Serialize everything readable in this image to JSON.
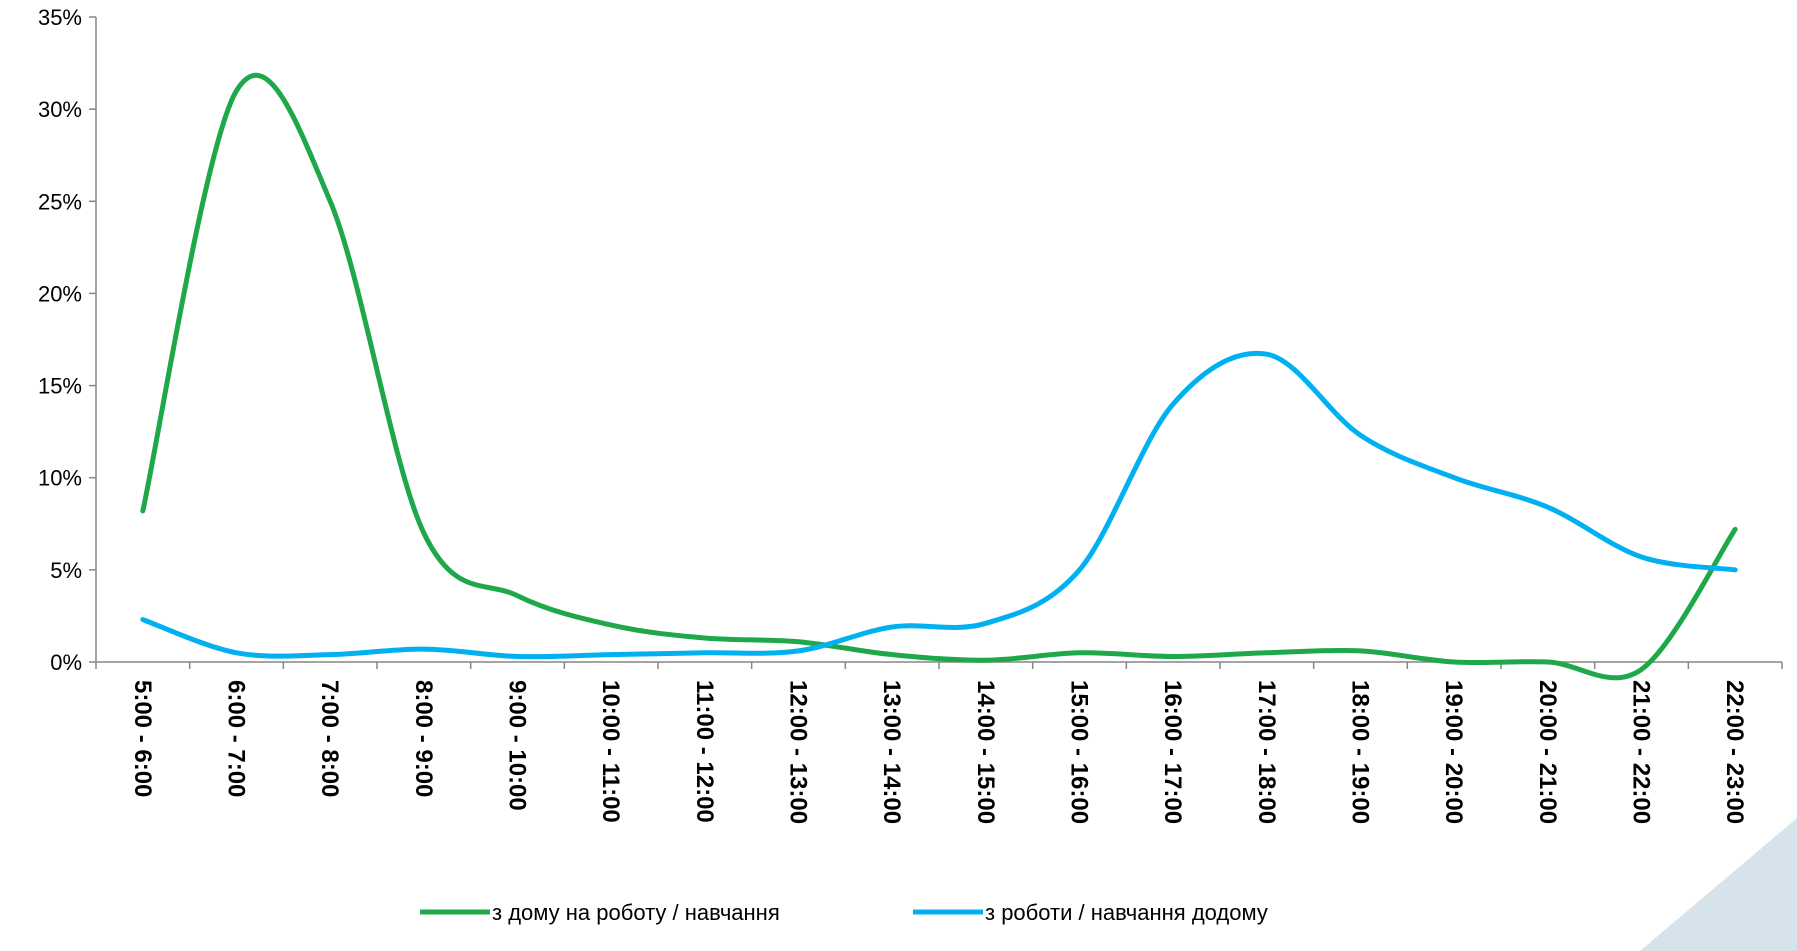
{
  "chart_data": {
    "type": "line",
    "smooth": true,
    "categories": [
      "5:00 - 6:00",
      "6:00 - 7:00",
      "7:00 - 8:00",
      "8:00 - 9:00",
      "9:00 - 10:00",
      "10:00 - 11:00",
      "11:00 - 12:00",
      "12:00 - 13:00",
      "13:00 - 14:00",
      "14:00 - 15:00",
      "15:00 - 16:00",
      "16:00 - 17:00",
      "17:00 - 18:00",
      "18:00 - 19:00",
      "19:00 - 20:00",
      "20:00 - 21:00",
      "21:00 - 22:00",
      "22:00 - 23:00"
    ],
    "series": [
      {
        "name": "з дому на роботу / навчання",
        "color": "#1ea84a",
        "values": [
          8.2,
          31.0,
          25.0,
          7.0,
          3.6,
          2.0,
          1.3,
          1.1,
          0.4,
          0.1,
          0.5,
          0.3,
          0.5,
          0.6,
          0.0,
          0.0,
          -0.4,
          7.2
        ]
      },
      {
        "name": "з роботи / навчання додому",
        "color": "#00b0f0",
        "values": [
          2.3,
          0.5,
          0.4,
          0.7,
          0.3,
          0.4,
          0.5,
          0.6,
          1.9,
          2.1,
          5.0,
          14.0,
          16.7,
          12.3,
          10.0,
          8.4,
          5.7,
          5.0
        ]
      }
    ],
    "title": "",
    "xlabel": "",
    "ylabel": "",
    "ylim": [
      0,
      35
    ],
    "yticks": [
      "0%",
      "5%",
      "10%",
      "15%",
      "20%",
      "25%",
      "30%",
      "35%"
    ],
    "grid": false,
    "legend_position": "bottom"
  }
}
